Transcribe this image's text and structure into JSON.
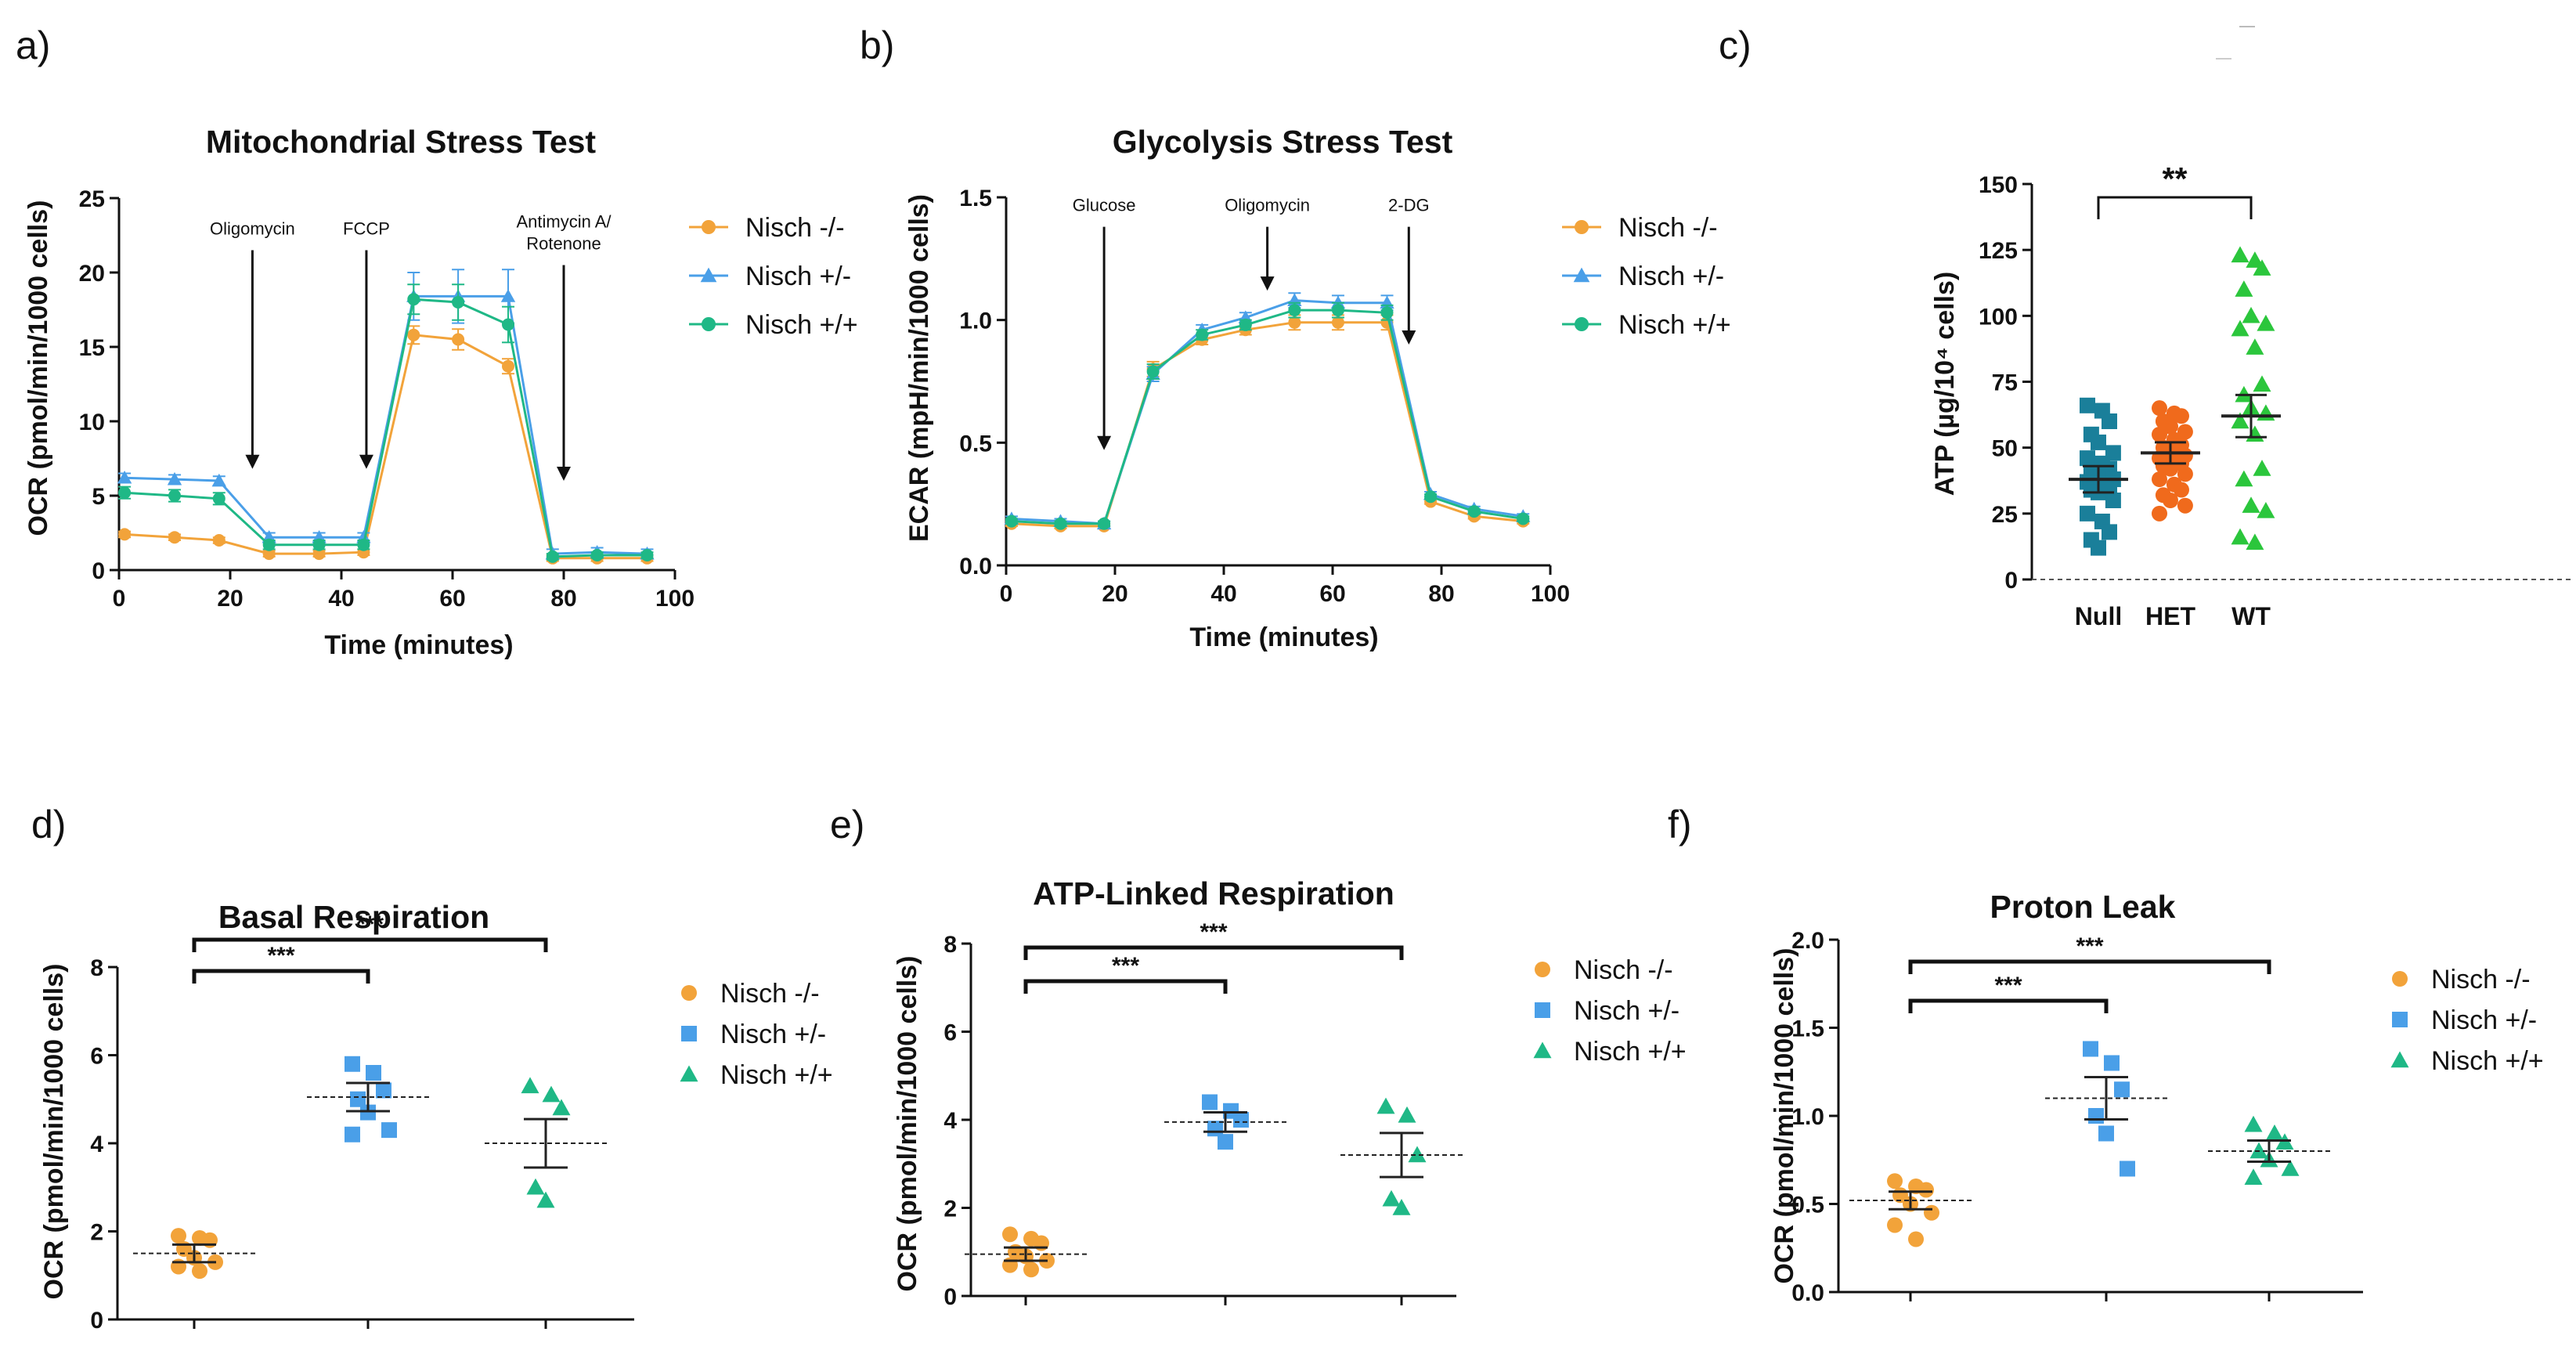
{
  "panels": [
    {
      "label": "a)",
      "title": "Mitochondrial Stress Test",
      "ylabel": "OCR (pmol/min/1000 cells)",
      "xlabel": "Time (minutes)"
    },
    {
      "label": "b)",
      "title": "Glycolysis Stress Test",
      "ylabel": "ECAR (mpH/min/1000 cells)",
      "xlabel": "Time (minutes)"
    },
    {
      "label": "c)",
      "title": "",
      "ylabel": "ATP (µg/10⁴ cells)",
      "xlabel": ""
    },
    {
      "label": "d)",
      "title": "Basal Respiration",
      "ylabel": "OCR (pmol/min/1000 cells)",
      "xlabel": ""
    },
    {
      "label": "e)",
      "title": "ATP-Linked Respiration",
      "ylabel": "OCR (pmol/min/1000 cells)",
      "xlabel": ""
    },
    {
      "label": "f)",
      "title": "Proton Leak",
      "ylabel": "OCR (pmol/min/1000 cells)",
      "xlabel": ""
    }
  ],
  "colors": {
    "nisch_null": "#f2a33a",
    "nisch_het": "#4a9fe8",
    "nisch_wt": "#1fb886",
    "c_null": "#1a7f9a",
    "c_het": "#f06a1c",
    "c_wt": "#2bc63c"
  },
  "chart_data": [
    {
      "type": "line",
      "panel": "a)",
      "title": "Mitochondrial Stress Test",
      "xlabel": "Time (minutes)",
      "ylabel": "OCR (pmol/min/1000 cells)",
      "xlim": [
        0,
        100
      ],
      "ylim": [
        0,
        25
      ],
      "xticks": [
        "0",
        "20",
        "40",
        "60",
        "80",
        "100"
      ],
      "yticks": [
        "0",
        "5",
        "10",
        "15",
        "20",
        "25"
      ],
      "x": [
        1,
        10,
        18,
        27,
        36,
        44,
        53,
        61,
        70,
        78,
        86,
        95
      ],
      "series": [
        {
          "name": "Nisch -/-",
          "marker": "circle",
          "colorKey": "nisch_null",
          "values": [
            2.4,
            2.2,
            2.0,
            1.1,
            1.1,
            1.2,
            15.8,
            15.5,
            13.7,
            0.8,
            0.8,
            0.8
          ],
          "err": [
            0.2,
            0.2,
            0.2,
            0.2,
            0.2,
            0.2,
            0.6,
            0.7,
            0.5,
            0.2,
            0.2,
            0.2
          ]
        },
        {
          "name": "Nisch +/-",
          "marker": "triangle",
          "colorKey": "nisch_het",
          "values": [
            6.2,
            6.1,
            6.0,
            2.2,
            2.2,
            2.2,
            18.4,
            18.4,
            18.4,
            1.1,
            1.2,
            1.1
          ],
          "err": [
            0.3,
            0.3,
            0.3,
            0.3,
            0.3,
            0.3,
            1.6,
            1.8,
            1.8,
            0.3,
            0.3,
            0.3
          ]
        },
        {
          "name": "Nisch +/+",
          "marker": "circle",
          "colorKey": "nisch_wt",
          "values": [
            5.2,
            5.0,
            4.8,
            1.7,
            1.7,
            1.7,
            18.2,
            18.0,
            16.5,
            0.9,
            1.0,
            1.0
          ],
          "err": [
            0.4,
            0.4,
            0.4,
            0.3,
            0.3,
            0.3,
            1.0,
            1.2,
            1.2,
            0.2,
            0.2,
            0.2
          ]
        }
      ],
      "annotations": [
        {
          "text": "Oligomycin",
          "x": 24,
          "y_top": 21.5,
          "y_tip": 6.8
        },
        {
          "text": "FCCP",
          "x": 44.5,
          "y_top": 21.5,
          "y_tip": 6.8
        },
        {
          "text": "Antimycin A/",
          "text2": "Rotenone",
          "x": 80,
          "y_top": 20.5,
          "y_tip": 6.0
        }
      ]
    },
    {
      "type": "line",
      "panel": "b)",
      "title": "Glycolysis Stress Test",
      "xlabel": "Time (minutes)",
      "ylabel": "ECAR (mpH/min/1000 cells)",
      "xlim": [
        0,
        100
      ],
      "ylim": [
        0,
        1.5
      ],
      "xticks": [
        "0",
        "20",
        "40",
        "60",
        "80",
        "100"
      ],
      "yticks": [
        "0.0",
        "0.5",
        "1.0",
        "1.5"
      ],
      "x": [
        1,
        10,
        18,
        27,
        36,
        44,
        53,
        61,
        70,
        78,
        86,
        95
      ],
      "series": [
        {
          "name": "Nisch -/-",
          "marker": "circle",
          "colorKey": "nisch_null",
          "values": [
            0.17,
            0.16,
            0.16,
            0.8,
            0.92,
            0.96,
            0.99,
            0.99,
            0.99,
            0.26,
            0.2,
            0.18
          ],
          "err": [
            0.01,
            0.01,
            0.01,
            0.03,
            0.02,
            0.02,
            0.03,
            0.03,
            0.03,
            0.01,
            0.01,
            0.01
          ]
        },
        {
          "name": "Nisch +/-",
          "marker": "triangle",
          "colorKey": "nisch_het",
          "values": [
            0.19,
            0.18,
            0.17,
            0.78,
            0.96,
            1.01,
            1.08,
            1.07,
            1.07,
            0.29,
            0.23,
            0.2
          ],
          "err": [
            0.01,
            0.01,
            0.01,
            0.03,
            0.02,
            0.02,
            0.03,
            0.03,
            0.03,
            0.01,
            0.01,
            0.01
          ]
        },
        {
          "name": "Nisch +/+",
          "marker": "circle",
          "colorKey": "nisch_wt",
          "values": [
            0.18,
            0.17,
            0.17,
            0.79,
            0.94,
            0.98,
            1.04,
            1.04,
            1.03,
            0.28,
            0.22,
            0.19
          ],
          "err": [
            0.01,
            0.01,
            0.01,
            0.03,
            0.02,
            0.02,
            0.03,
            0.03,
            0.03,
            0.01,
            0.01,
            0.01
          ]
        }
      ],
      "annotations": [
        {
          "text": "Glucose",
          "x": 18,
          "y_top": 1.38,
          "y_tip": 0.47
        },
        {
          "text": "Oligomycin",
          "x": 48,
          "y_top": 1.38,
          "y_tip": 1.12
        },
        {
          "text": "2-DG",
          "x": 74,
          "y_top": 1.38,
          "y_tip": 0.9
        }
      ]
    },
    {
      "type": "scatter",
      "panel": "c)",
      "ylabel": "ATP (µg/10⁴ cells)",
      "ylim": [
        0,
        150
      ],
      "yticks": [
        "0",
        "25",
        "50",
        "75",
        "100",
        "125",
        "150"
      ],
      "categories": [
        "Null",
        "HET",
        "WT"
      ],
      "groups": [
        {
          "category": "Null",
          "marker": "square",
          "colorKey": "c_null",
          "mean": 38,
          "sem": 5,
          "points": [
            66,
            64,
            60,
            55,
            52,
            48,
            46,
            44,
            42,
            40,
            39,
            38,
            37,
            36,
            35,
            34,
            33,
            30,
            25,
            22,
            18,
            15,
            12
          ]
        },
        {
          "category": "HET",
          "marker": "circle",
          "colorKey": "c_het",
          "mean": 48,
          "sem": 4,
          "points": [
            65,
            63,
            62,
            60,
            58,
            56,
            55,
            53,
            51,
            50,
            48,
            47,
            46,
            45,
            44,
            43,
            42,
            40,
            38,
            36,
            34,
            32,
            30,
            28,
            25
          ]
        },
        {
          "category": "WT",
          "marker": "triangle",
          "colorKey": "c_wt",
          "mean": 62,
          "sem": 8,
          "points": [
            123,
            121,
            118,
            110,
            100,
            97,
            95,
            88,
            74,
            70,
            65,
            63,
            60,
            55,
            42,
            38,
            28,
            26,
            16,
            14
          ]
        }
      ],
      "significance": [
        {
          "from": "Null",
          "to": "WT",
          "label": "**"
        }
      ]
    },
    {
      "type": "scatter",
      "panel": "d)",
      "title": "Basal Respiration",
      "ylabel": "OCR (pmol/min/1000 cells)",
      "ylim": [
        0,
        8
      ],
      "yticks": [
        "0",
        "2",
        "4",
        "6",
        "8"
      ],
      "groups": [
        {
          "name": "Nisch -/-",
          "marker": "circle",
          "colorKey": "nisch_null",
          "mean": 1.5,
          "sem": 0.2,
          "points": [
            1.9,
            1.85,
            1.8,
            1.6,
            1.4,
            1.3,
            1.2,
            1.1
          ]
        },
        {
          "name": "Nisch +/-",
          "marker": "square",
          "colorKey": "nisch_het",
          "mean": 5.05,
          "sem": 0.32,
          "points": [
            5.8,
            5.6,
            5.2,
            5.0,
            4.7,
            4.3,
            4.2
          ]
        },
        {
          "name": "Nisch +/+",
          "marker": "triangle",
          "colorKey": "nisch_wt",
          "mean": 4.0,
          "sem": 0.55,
          "points": [
            5.3,
            5.1,
            4.8,
            3.0,
            2.7
          ]
        }
      ],
      "significance": [
        {
          "from": 0,
          "to": 1,
          "label": "***"
        },
        {
          "from": 0,
          "to": 2,
          "label": "***"
        }
      ]
    },
    {
      "type": "scatter",
      "panel": "e)",
      "title": "ATP-Linked Respiration",
      "ylabel": "OCR (pmol/min/1000 cells)",
      "ylim": [
        0,
        8
      ],
      "yticks": [
        "0",
        "2",
        "4",
        "6",
        "8"
      ],
      "groups": [
        {
          "name": "Nisch -/-",
          "marker": "circle",
          "colorKey": "nisch_null",
          "mean": 0.95,
          "sem": 0.15,
          "points": [
            1.4,
            1.3,
            1.2,
            1.0,
            0.9,
            0.8,
            0.7,
            0.6
          ]
        },
        {
          "name": "Nisch +/-",
          "marker": "square",
          "colorKey": "nisch_het",
          "mean": 3.95,
          "sem": 0.22,
          "points": [
            4.4,
            4.2,
            4.0,
            3.8,
            3.5
          ]
        },
        {
          "name": "Nisch +/+",
          "marker": "triangle",
          "colorKey": "nisch_wt",
          "mean": 3.2,
          "sem": 0.5,
          "points": [
            4.3,
            4.1,
            3.2,
            2.2,
            2.0
          ]
        }
      ],
      "significance": [
        {
          "from": 0,
          "to": 1,
          "label": "***"
        },
        {
          "from": 0,
          "to": 2,
          "label": "***"
        }
      ]
    },
    {
      "type": "scatter",
      "panel": "f)",
      "title": "Proton Leak",
      "ylabel": "OCR (pmol/min/1000 cells)",
      "ylim": [
        0,
        2.0
      ],
      "yticks": [
        "0.0",
        "0.5",
        "1.0",
        "1.5",
        "2.0"
      ],
      "groups": [
        {
          "name": "Nisch -/-",
          "marker": "circle",
          "colorKey": "nisch_null",
          "mean": 0.52,
          "sem": 0.05,
          "points": [
            0.63,
            0.6,
            0.58,
            0.55,
            0.5,
            0.45,
            0.38,
            0.3
          ]
        },
        {
          "name": "Nisch +/-",
          "marker": "square",
          "colorKey": "nisch_het",
          "mean": 1.1,
          "sem": 0.12,
          "points": [
            1.38,
            1.3,
            1.15,
            1.0,
            0.9,
            0.7
          ]
        },
        {
          "name": "Nisch +/+",
          "marker": "triangle",
          "colorKey": "nisch_wt",
          "mean": 0.8,
          "sem": 0.06,
          "points": [
            0.95,
            0.9,
            0.85,
            0.8,
            0.75,
            0.7,
            0.65
          ]
        }
      ],
      "significance": [
        {
          "from": 0,
          "to": 1,
          "label": "***"
        },
        {
          "from": 0,
          "to": 2,
          "label": "***"
        }
      ]
    }
  ]
}
